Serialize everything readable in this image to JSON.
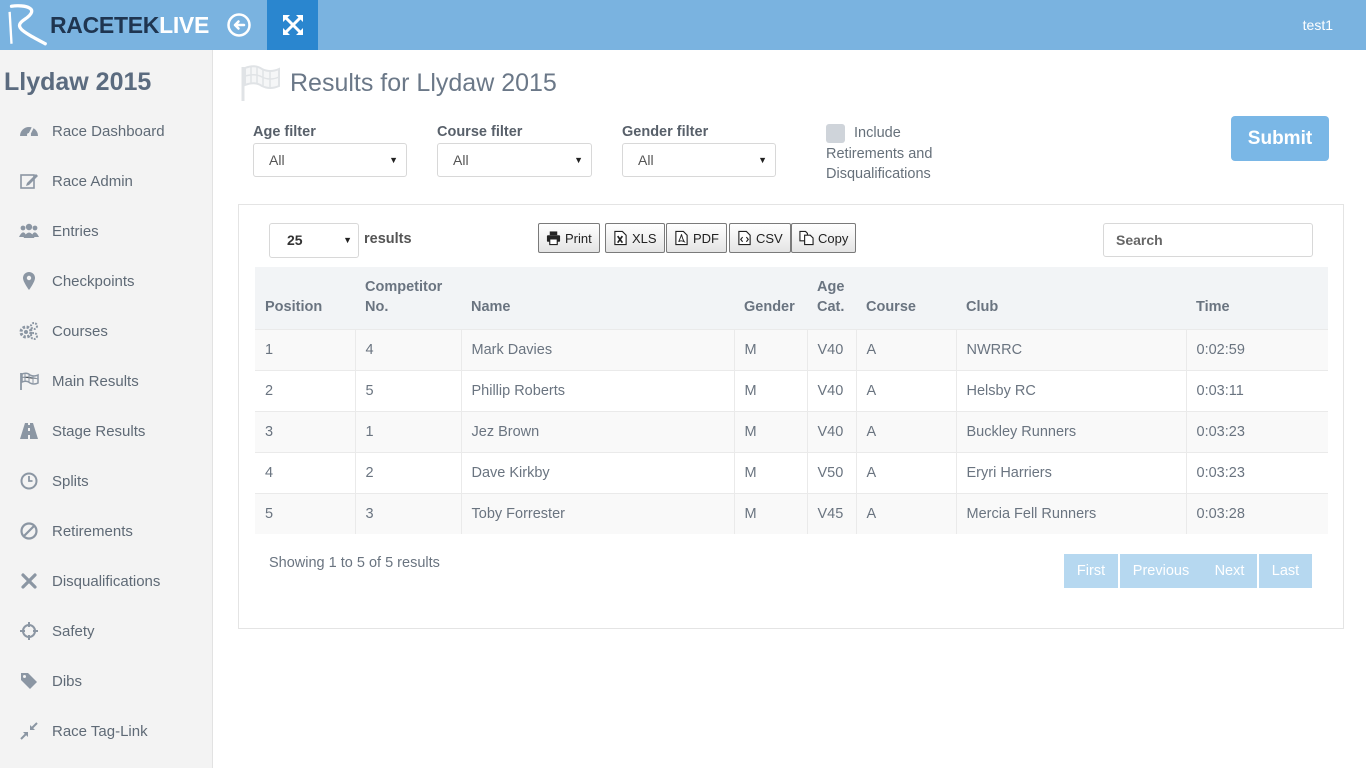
{
  "brand": {
    "part1": "RACETEK",
    "part2": "LIVE"
  },
  "header": {
    "user": "test1"
  },
  "sidebar": {
    "title": "Llydaw 2015",
    "items": [
      {
        "label": "Race Dashboard",
        "icon": "dashboard-icon"
      },
      {
        "label": "Race Admin",
        "icon": "edit-icon"
      },
      {
        "label": "Entries",
        "icon": "users-icon"
      },
      {
        "label": "Checkpoints",
        "icon": "map-marker-icon"
      },
      {
        "label": "Courses",
        "icon": "cogs-icon"
      },
      {
        "label": "Main Results",
        "icon": "flag-icon"
      },
      {
        "label": "Stage Results",
        "icon": "road-icon"
      },
      {
        "label": "Splits",
        "icon": "clock-icon"
      },
      {
        "label": "Retirements",
        "icon": "ban-icon"
      },
      {
        "label": "Disqualifications",
        "icon": "times-icon"
      },
      {
        "label": "Safety",
        "icon": "crosshairs-icon"
      },
      {
        "label": "Dibs",
        "icon": "tag-icon"
      },
      {
        "label": "Race Tag-Link",
        "icon": "compress-icon"
      }
    ]
  },
  "main": {
    "title": "Results for Llydaw 2015",
    "filters": {
      "age": {
        "label": "Age filter",
        "value": "All"
      },
      "course": {
        "label": "Course filter",
        "value": "All"
      },
      "gender": {
        "label": "Gender filter",
        "value": "All"
      },
      "include_label": "Include Retirements and Disqualifications",
      "submit": "Submit"
    },
    "table_controls": {
      "length_value": "25",
      "length_label": "results",
      "exports": [
        "Print",
        "XLS",
        "PDF",
        "CSV",
        "Copy"
      ],
      "search_placeholder": "Search"
    },
    "columns": [
      "Position",
      "Competitor No.",
      "Name",
      "Gender",
      "Age Cat.",
      "Course",
      "Club",
      "Time"
    ],
    "rows": [
      [
        "1",
        "4",
        "Mark Davies",
        "M",
        "V40",
        "A",
        "NWRRC",
        "0:02:59"
      ],
      [
        "2",
        "5",
        "Phillip Roberts",
        "M",
        "V40",
        "A",
        "Helsby RC",
        "0:03:11"
      ],
      [
        "3",
        "1",
        "Jez Brown",
        "M",
        "V40",
        "A",
        "Buckley Runners",
        "0:03:23"
      ],
      [
        "4",
        "2",
        "Dave Kirkby",
        "M",
        "V50",
        "A",
        "Eryri Harriers",
        "0:03:23"
      ],
      [
        "5",
        "3",
        "Toby Forrester",
        "M",
        "V45",
        "A",
        "Mercia Fell Runners",
        "0:03:28"
      ]
    ],
    "info": "Showing 1 to 5 of 5 results",
    "pager": [
      "First",
      "Previous",
      "Next",
      "Last"
    ]
  }
}
